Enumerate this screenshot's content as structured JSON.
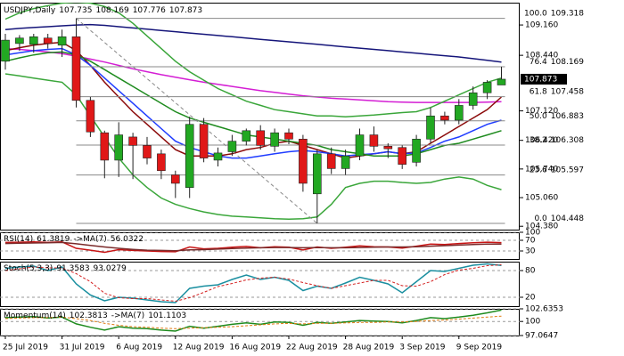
{
  "chart_data": [
    {
      "type": "candlestick",
      "title": "USDJPY,Daily",
      "categories": [
        "25 Jul 2019",
        null,
        null,
        null,
        "31 Jul 2019",
        null,
        null,
        null,
        "6 Aug 2019",
        null,
        null,
        null,
        "12 Aug 2019",
        null,
        null,
        null,
        "16 Aug 2019",
        null,
        null,
        null,
        "22 Aug 2019",
        null,
        null,
        null,
        "28 Aug 2019",
        null,
        null,
        null,
        "3 Sep 2019",
        null,
        null,
        null,
        "9 Sep 2019",
        null,
        null,
        null
      ],
      "open": [
        108.3,
        108.72,
        108.7,
        108.85,
        108.68,
        108.88,
        107.37,
        106.6,
        105.95,
        106.5,
        106.3,
        106.1,
        105.6,
        105.3,
        106.8,
        105.95,
        106.15,
        106.4,
        106.65,
        106.28,
        106.6,
        106.45,
        105.15,
        106.1,
        105.75,
        106.05,
        106.55,
        106.28,
        106.25,
        105.9,
        106.45,
        107.0,
        106.9,
        107.25,
        107.55,
        107.735
      ],
      "high": [
        108.95,
        108.92,
        108.95,
        108.95,
        109.05,
        109.318,
        107.45,
        106.65,
        106.85,
        106.6,
        106.5,
        106.2,
        105.7,
        106.98,
        106.95,
        106.25,
        106.55,
        106.7,
        106.78,
        106.7,
        106.7,
        106.55,
        106.2,
        106.25,
        106.2,
        106.7,
        106.75,
        106.35,
        106.3,
        106.55,
        107.2,
        107.1,
        107.4,
        107.7,
        107.85,
        108.169
      ],
      "low": [
        108.1,
        108.55,
        108.5,
        108.6,
        108.4,
        107.2,
        106.5,
        105.52,
        105.55,
        105.5,
        105.85,
        105.5,
        105.05,
        105.05,
        105.9,
        105.8,
        106.05,
        106.3,
        106.2,
        106.15,
        106.33,
        105.2,
        104.448,
        105.62,
        105.6,
        105.95,
        106.15,
        106.0,
        105.74,
        105.8,
        106.35,
        106.8,
        106.8,
        107.15,
        107.4,
        107.776
      ],
      "close": [
        108.8,
        108.85,
        108.88,
        108.72,
        108.88,
        107.37,
        106.62,
        105.95,
        106.55,
        106.3,
        106.0,
        105.7,
        105.4,
        106.8,
        106.0,
        106.12,
        106.4,
        106.65,
        106.3,
        106.6,
        106.45,
        105.4,
        106.1,
        105.75,
        106.05,
        106.55,
        106.28,
        106.22,
        105.85,
        106.45,
        107.0,
        106.9,
        107.25,
        107.55,
        107.8,
        107.873
      ],
      "up_color": "#22a822",
      "down_color": "#e01818",
      "series": [
        {
          "color": "#15157a",
          "values": [
            109.05,
            109.08,
            109.1,
            109.12,
            109.14,
            109.16,
            109.17,
            109.15,
            109.12,
            109.09,
            109.06,
            109.03,
            109.0,
            108.97,
            108.94,
            108.91,
            108.88,
            108.85,
            108.82,
            108.79,
            108.76,
            108.73,
            108.7,
            108.67,
            108.64,
            108.61,
            108.58,
            108.55,
            108.52,
            108.49,
            108.46,
            108.43,
            108.4,
            108.36,
            108.32,
            108.28
          ]
        },
        {
          "color": "#d41ed4",
          "values": [
            108.6,
            108.58,
            108.55,
            108.52,
            108.48,
            108.42,
            108.35,
            108.28,
            108.2,
            108.12,
            108.05,
            107.98,
            107.92,
            107.86,
            107.8,
            107.75,
            107.7,
            107.65,
            107.6,
            107.56,
            107.52,
            107.48,
            107.45,
            107.42,
            107.4,
            107.38,
            107.36,
            107.34,
            107.33,
            107.32,
            107.32,
            107.32,
            107.32,
            107.32,
            107.33,
            107.34
          ]
        },
        {
          "color": "#8b0a0a",
          "values": [
            108.55,
            108.62,
            108.68,
            108.72,
            108.75,
            108.55,
            108.2,
            107.8,
            107.45,
            107.1,
            106.8,
            106.5,
            106.2,
            106.05,
            106.05,
            106.05,
            106.1,
            106.2,
            106.25,
            106.35,
            106.4,
            106.3,
            106.2,
            106.1,
            106.0,
            106.05,
            106.1,
            106.15,
            106.1,
            106.15,
            106.35,
            106.55,
            106.75,
            106.95,
            107.15,
            107.45
          ]
        },
        {
          "color": "#1f3cff",
          "values": [
            108.45,
            108.5,
            108.55,
            108.58,
            108.6,
            108.45,
            108.2,
            107.9,
            107.6,
            107.3,
            107.0,
            106.7,
            106.4,
            106.25,
            106.15,
            106.05,
            106.0,
            106.0,
            106.05,
            106.1,
            106.15,
            106.18,
            106.15,
            106.1,
            106.05,
            106.08,
            106.1,
            106.15,
            106.1,
            106.12,
            106.25,
            106.4,
            106.5,
            106.65,
            106.8,
            106.9
          ]
        },
        {
          "color": "#1e8b1e",
          "values": [
            108.3,
            108.38,
            108.45,
            108.5,
            108.52,
            108.45,
            108.3,
            108.1,
            107.9,
            107.7,
            107.5,
            107.3,
            107.1,
            106.95,
            106.85,
            106.75,
            106.65,
            106.55,
            106.5,
            106.45,
            106.4,
            106.35,
            106.3,
            106.2,
            106.15,
            106.1,
            106.05,
            106.05,
            106.05,
            106.1,
            106.2,
            106.3,
            106.35,
            106.45,
            106.55,
            106.65
          ]
        },
        {
          "color": "#3aa63a",
          "values": [
            109.3,
            109.45,
            109.55,
            109.62,
            109.68,
            109.7,
            109.68,
            109.6,
            109.45,
            109.2,
            108.9,
            108.6,
            108.3,
            108.05,
            107.85,
            107.65,
            107.5,
            107.35,
            107.25,
            107.15,
            107.1,
            107.05,
            107.0,
            107.0,
            106.98,
            107.0,
            107.02,
            107.05,
            107.08,
            107.1,
            107.2,
            107.35,
            107.5,
            107.65,
            107.8,
            107.9
          ]
        },
        {
          "color": "#3aa63a",
          "values": [
            108.0,
            107.95,
            107.9,
            107.85,
            107.8,
            107.5,
            107.0,
            106.5,
            106.0,
            105.6,
            105.3,
            105.05,
            104.9,
            104.8,
            104.72,
            104.66,
            104.62,
            104.6,
            104.58,
            104.56,
            104.55,
            104.56,
            104.6,
            104.9,
            105.3,
            105.4,
            105.45,
            105.45,
            105.42,
            105.4,
            105.42,
            105.5,
            105.55,
            105.5,
            105.35,
            105.25
          ]
        }
      ],
      "fib_levels": [
        {
          "level": "100.0",
          "price": 109.318
        },
        {
          "level": "76.4",
          "price": 108.169
        },
        {
          "level": "61.8",
          "price": 107.458
        },
        {
          "level": "50.0",
          "price": 106.883
        },
        {
          "level": "38.2",
          "price": 106.308
        },
        {
          "level": "23.6",
          "price": 105.597
        },
        {
          "level": "0.0",
          "price": 104.448
        }
      ],
      "ylim": [
        104.3,
        109.69
      ],
      "yticks": [
        {
          "value": 109.16,
          "label": "109.160"
        },
        {
          "value": 108.44,
          "label": "108.440"
        },
        {
          "value": 107.12,
          "label": "107.120"
        },
        {
          "value": 106.42,
          "label": "106.420"
        },
        {
          "value": 105.74,
          "label": "105.740"
        },
        {
          "value": 105.06,
          "label": "105.060"
        },
        {
          "value": 104.38,
          "label": "104.380"
        }
      ]
    },
    {
      "type": "line",
      "title": "RSI(14)",
      "ma_label": "->MA(7)",
      "series": [
        {
          "color": "#c81414",
          "values": [
            62,
            63,
            64,
            62,
            64,
            40,
            33,
            25,
            35,
            32,
            30,
            28,
            27,
            45,
            38,
            40,
            44,
            47,
            42,
            46,
            44,
            34,
            45,
            40,
            44,
            49,
            46,
            45,
            41,
            48,
            56,
            54,
            58,
            61,
            63,
            61.3819
          ]
        },
        {
          "color": "#7a2a2a",
          "values": [
            58,
            59,
            60,
            61,
            62,
            57,
            51,
            45,
            40,
            36,
            33,
            32,
            31,
            34,
            35,
            37,
            39,
            41,
            42,
            43,
            43,
            42,
            43,
            42,
            42,
            43,
            44,
            45,
            45,
            46,
            48,
            50,
            52,
            54,
            56,
            56.0322
          ]
        }
      ],
      "ylim": [
        0,
        100
      ],
      "yticks": [
        100,
        70,
        30
      ]
    },
    {
      "type": "line",
      "title": "Stoch(5,3,3)",
      "series": [
        {
          "color": "#1a8fa0",
          "values": [
            85,
            88,
            90,
            80,
            88,
            50,
            25,
            12,
            20,
            18,
            14,
            10,
            8,
            40,
            45,
            48,
            60,
            70,
            60,
            65,
            58,
            35,
            45,
            40,
            52,
            65,
            58,
            50,
            30,
            55,
            80,
            78,
            85,
            92,
            95,
            91.3583
          ]
        },
        {
          "color": "#d42020",
          "dashed": true,
          "values": [
            80,
            84,
            88,
            86,
            86,
            73,
            55,
            29,
            19,
            17,
            17,
            14,
            11,
            19,
            31,
            44,
            51,
            59,
            63,
            65,
            61,
            53,
            46,
            40,
            46,
            52,
            58,
            58,
            46,
            45,
            55,
            71,
            81,
            85,
            91,
            93.0279
          ]
        }
      ],
      "ylim": [
        0,
        100
      ],
      "yticks": [
        80,
        20
      ]
    },
    {
      "type": "line",
      "title": "Momentum(14)",
      "ma_label": "->MA(7)",
      "series": [
        {
          "color": "#1e8b1e",
          "values": [
            100.8,
            100.9,
            101.0,
            100.7,
            100.9,
            99.5,
            98.8,
            98.2,
            98.9,
            98.6,
            98.5,
            98.2,
            98.0,
            99.0,
            98.6,
            99.0,
            99.4,
            99.7,
            99.4,
            99.9,
            99.8,
            99.2,
            99.8,
            99.6,
            99.9,
            100.2,
            100.1,
            100.0,
            99.7,
            100.2,
            100.8,
            100.6,
            100.9,
            101.3,
            101.8,
            102.3813
          ]
        },
        {
          "color": "#e07a10",
          "dashed": true,
          "values": [
            100.6,
            100.7,
            100.8,
            100.8,
            100.9,
            100.6,
            100.2,
            99.6,
            99.2,
            98.9,
            98.8,
            98.6,
            98.5,
            98.6,
            98.7,
            98.8,
            98.9,
            99.1,
            99.3,
            99.5,
            99.6,
            99.5,
            99.6,
            99.6,
            99.7,
            99.8,
            99.8,
            99.9,
            99.9,
            100.0,
            100.2,
            100.3,
            100.5,
            100.7,
            100.9,
            101.1103
          ]
        }
      ],
      "ylim": [
        97.0647,
        102.6353
      ],
      "yticks": [
        102.6353,
        100,
        97.0647
      ]
    }
  ]
}
